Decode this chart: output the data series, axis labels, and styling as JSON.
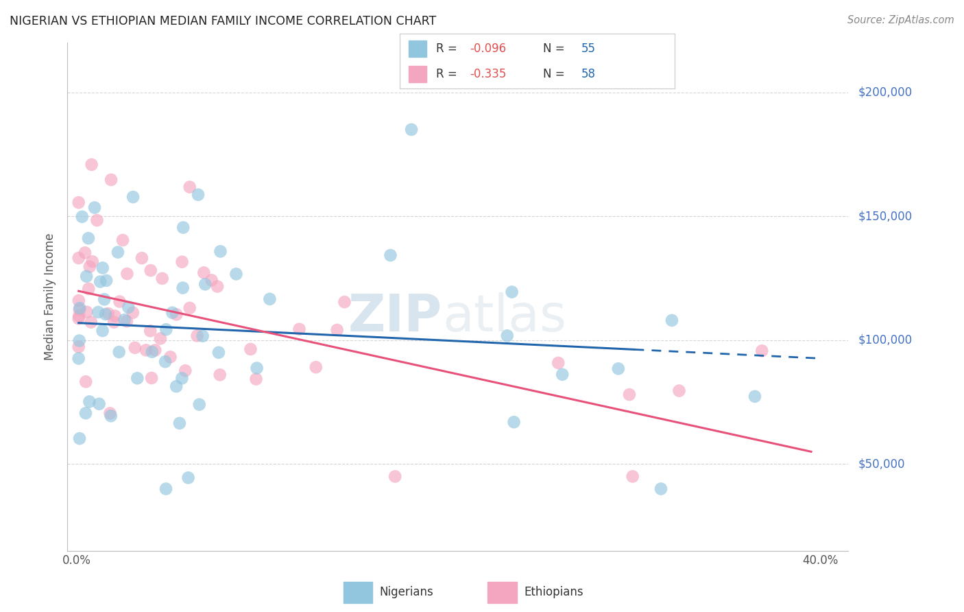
{
  "title": "NIGERIAN VS ETHIOPIAN MEDIAN FAMILY INCOME CORRELATION CHART",
  "source": "Source: ZipAtlas.com",
  "ylabel": "Median Family Income",
  "yticks": [
    50000,
    100000,
    150000,
    200000
  ],
  "ytick_labels": [
    "$50,000",
    "$100,000",
    "$150,000",
    "$200,000"
  ],
  "xlim": [
    -0.005,
    0.415
  ],
  "ylim": [
    15000,
    220000
  ],
  "blue_color": "#92c5de",
  "pink_color": "#f4a6c0",
  "blue_line_color": "#2166ac",
  "pink_line_color": "#e8527a",
  "watermark_zip": "ZIP",
  "watermark_atlas": "atlas",
  "background_color": "#ffffff",
  "grid_color": "#d0d0d0",
  "nig_R": -0.096,
  "nig_N": 55,
  "eth_R": -0.335,
  "eth_N": 58,
  "nig_intercept": 107000,
  "nig_slope": -30000,
  "eth_intercept": 122000,
  "eth_slope": -190000
}
